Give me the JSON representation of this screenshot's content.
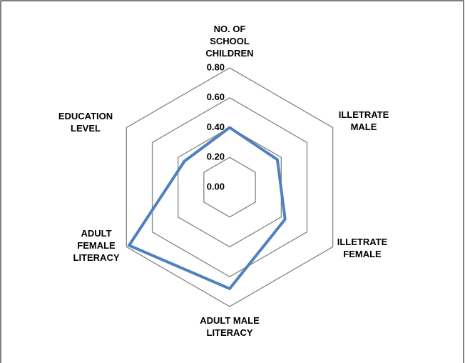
{
  "chart_data": {
    "type": "radar",
    "categories": [
      "NO. OF SCHOOL CHILDREN",
      "ILLETRATE MALE",
      "ILLETRATE FEMALE",
      "ADULT MALE LITERACY",
      "ADULT FEMALE LITERACY",
      "EDUCATION LEVEL"
    ],
    "values": [
      0.4,
      0.37,
      0.43,
      0.68,
      0.78,
      0.35
    ],
    "color": "#4f81bd",
    "rlim": [
      0,
      0.8
    ],
    "rticks": [
      {
        "value": 0,
        "label": "0.00"
      },
      {
        "value": 0.2,
        "label": "0.20"
      },
      {
        "value": 0.4,
        "label": "0.40"
      },
      {
        "value": 0.6,
        "label": "0.60"
      },
      {
        "value": 0.8,
        "label": "0.80"
      }
    ],
    "grid": true
  }
}
